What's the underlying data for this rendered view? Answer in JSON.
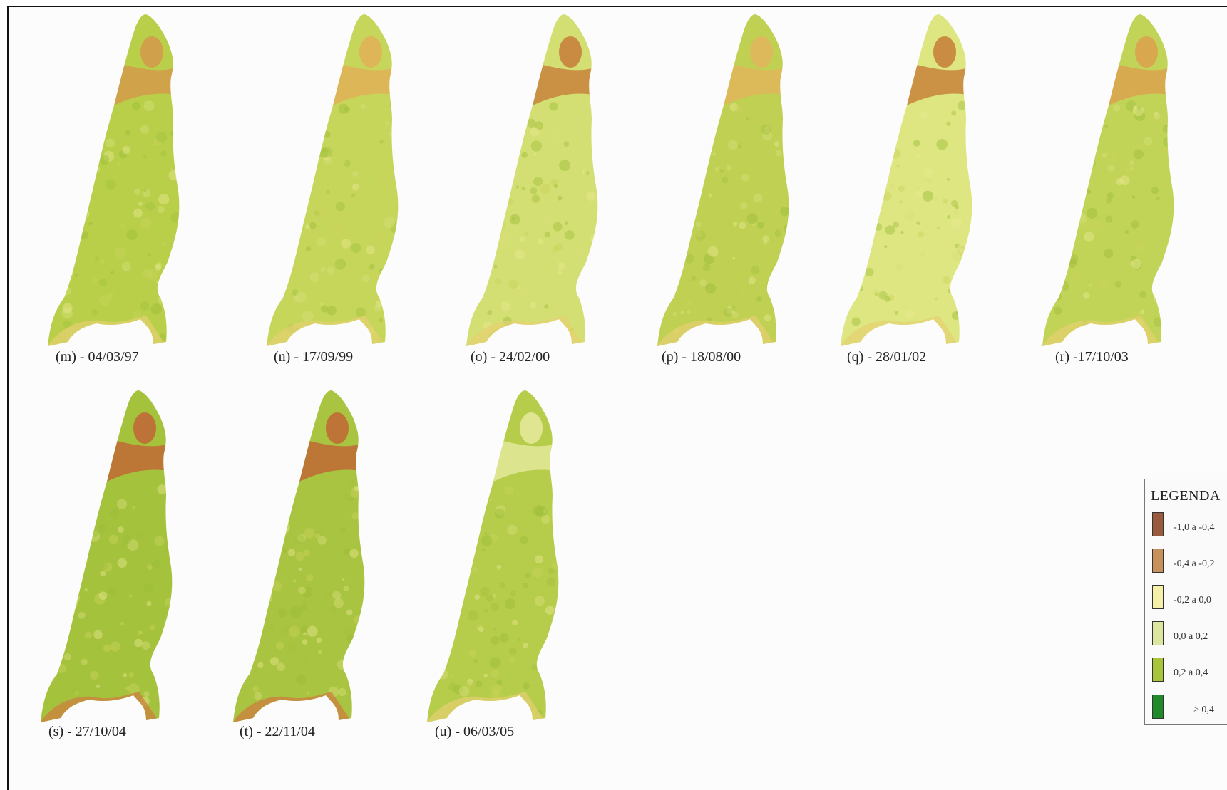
{
  "panels": [
    {
      "caption": "(m) - 04/03/97",
      "base": "#b9cf4a",
      "north": "#d49a4a"
    },
    {
      "caption": "(n) - 17/09/99",
      "base": "#c6d65a",
      "north": "#e0b257"
    },
    {
      "caption": "(o) - 24/02/00",
      "base": "#d3df72",
      "north": "#c8823c"
    },
    {
      "caption": "(p) - 18/08/00",
      "base": "#bfd052",
      "north": "#e1b65c"
    },
    {
      "caption": "(q) - 28/01/02",
      "base": "#dde680",
      "north": "#c8823c"
    },
    {
      "caption": "(r) -17/10/03",
      "base": "#c2d458",
      "north": "#dca24e"
    },
    {
      "caption": "(s) - 27/10/04",
      "base": "#a5c23c",
      "north": "#c06a36"
    },
    {
      "caption": "(t) - 22/11/04",
      "base": "#a9c440",
      "north": "#c06a36"
    },
    {
      "caption": "(u) - 06/03/05",
      "base": "#b6cd4c",
      "north": "#e4e89a"
    }
  ],
  "legend": {
    "title": "LEGENDA",
    "items": [
      {
        "label": "-1,0 a -0,4",
        "color": "#9a5a3e"
      },
      {
        "label": "-0,4 a -0,2",
        "color": "#c8905a"
      },
      {
        "label": "-0,2 a  0,0",
        "color": "#f4f0a8"
      },
      {
        "label": "0,0 a  0,2",
        "color": "#dde6a0"
      },
      {
        "label": "0,2 a  0,4",
        "color": "#a8c43a"
      },
      {
        "label": "> 0,4",
        "color": "#1e8a2a"
      }
    ]
  }
}
